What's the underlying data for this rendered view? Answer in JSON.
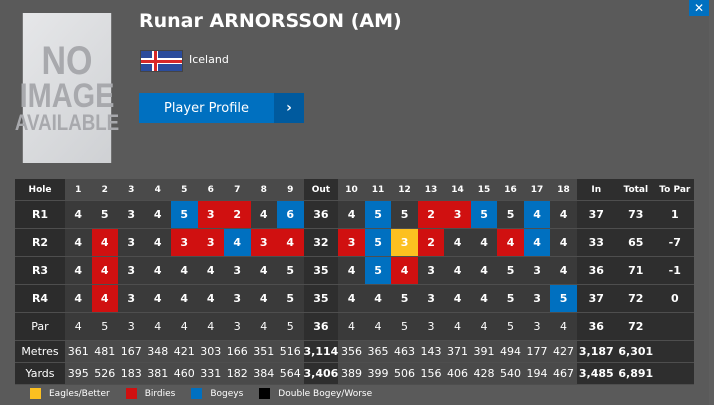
{
  "player": {
    "name": "Runar ARNORSSON (AM)",
    "country": "Iceland",
    "photo_text": [
      "NO",
      "IMAGE",
      "AVAILABLE"
    ],
    "profile_button": "Player Profile",
    "profile_arrow": "›",
    "close_icon": "✕"
  },
  "scorecard": {
    "headers": {
      "hole": "Hole",
      "out": "Out",
      "in": "In",
      "total": "Total",
      "to_par": "To Par"
    },
    "holes": [
      1,
      2,
      3,
      4,
      5,
      6,
      7,
      8,
      9,
      10,
      11,
      12,
      13,
      14,
      15,
      16,
      17,
      18
    ],
    "rounds": [
      {
        "label": "R1",
        "scores": [
          4,
          5,
          3,
          4,
          5,
          3,
          2,
          4,
          6,
          4,
          5,
          5,
          2,
          3,
          5,
          5,
          4,
          4
        ],
        "out": "36",
        "in": "37",
        "total": "73",
        "to_par": "1"
      },
      {
        "label": "R2",
        "scores": [
          4,
          4,
          3,
          4,
          3,
          3,
          4,
          3,
          4,
          3,
          5,
          3,
          2,
          4,
          4,
          4,
          4,
          4
        ],
        "out": "32",
        "in": "33",
        "total": "65",
        "to_par": "-7"
      },
      {
        "label": "R3",
        "scores": [
          4,
          4,
          3,
          4,
          4,
          4,
          3,
          4,
          5,
          4,
          5,
          4,
          3,
          4,
          4,
          5,
          3,
          4
        ],
        "out": "35",
        "in": "36",
        "total": "71",
        "to_par": "-1"
      },
      {
        "label": "R4",
        "scores": [
          4,
          4,
          3,
          4,
          4,
          4,
          3,
          4,
          5,
          4,
          4,
          5,
          3,
          4,
          4,
          5,
          3,
          5
        ],
        "out": "35",
        "in": "37",
        "total": "72",
        "to_par": "0"
      }
    ],
    "par": {
      "label": "Par",
      "values": [
        4,
        5,
        3,
        4,
        4,
        4,
        3,
        4,
        5,
        4,
        4,
        5,
        3,
        4,
        4,
        5,
        3,
        4
      ],
      "out": "36",
      "in": "36",
      "total": "72"
    },
    "metres": {
      "label": "Metres",
      "values": [
        361,
        481,
        167,
        348,
        421,
        303,
        166,
        351,
        516,
        356,
        365,
        463,
        143,
        371,
        391,
        494,
        177,
        427
      ],
      "out": "3,114",
      "in": "3,187",
      "total": "6,301"
    },
    "yards": {
      "label": "Yards",
      "values": [
        395,
        526,
        183,
        381,
        460,
        331,
        182,
        384,
        564,
        389,
        399,
        506,
        156,
        406,
        428,
        540,
        194,
        467
      ],
      "out": "3,406",
      "in": "3,485",
      "total": "6,891"
    }
  },
  "legend": [
    {
      "label": "Eagles/Better",
      "color": "#fcc020"
    },
    {
      "label": "Birdies",
      "color": "#d01010"
    },
    {
      "label": "Bogeys",
      "color": "#0070c0"
    },
    {
      "label": "Double Bogey/Worse",
      "color": "#000000"
    }
  ]
}
